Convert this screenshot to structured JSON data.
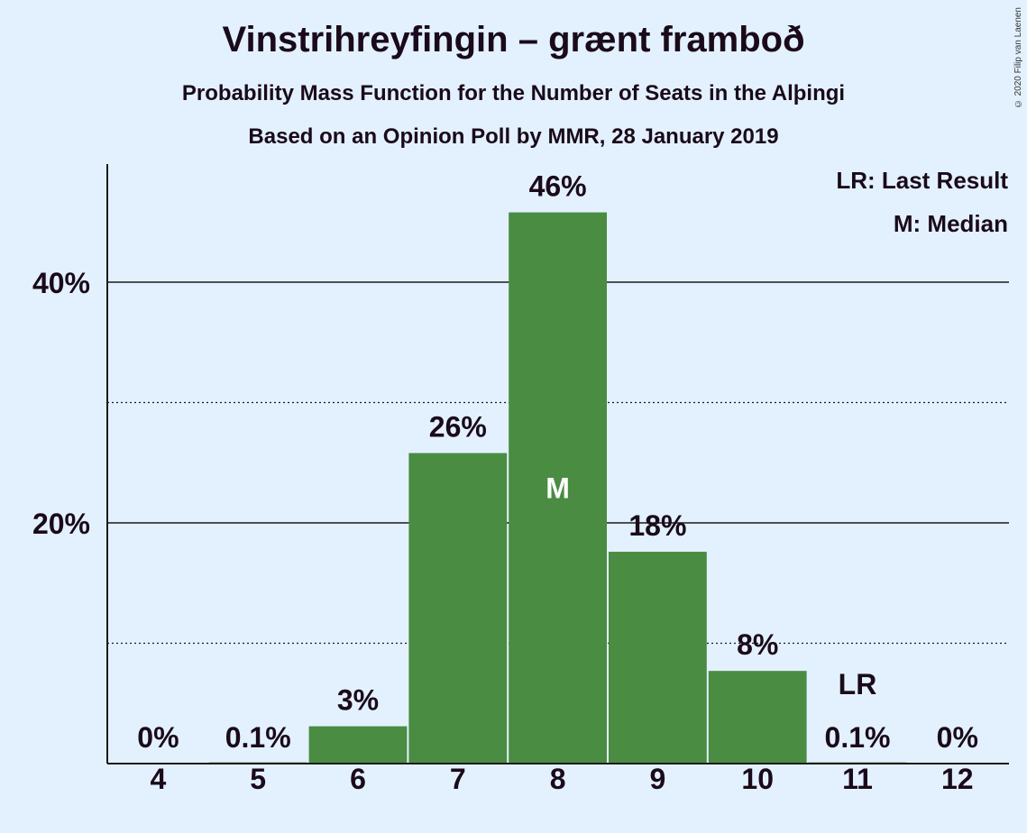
{
  "chart_data": {
    "type": "bar",
    "title": "Vinstrihreyfingin – grænt framboð",
    "subtitle": "Probability Mass Function for the Number of Seats in the Alþingi",
    "source": "Based on an Opinion Poll by MMR, 28 January 2019",
    "copyright": "© 2020 Filip van Laenen",
    "categories": [
      "4",
      "5",
      "6",
      "7",
      "8",
      "9",
      "10",
      "11",
      "12"
    ],
    "values": [
      0,
      0.1,
      3.1,
      25.8,
      45.8,
      17.6,
      7.7,
      0.1,
      0
    ],
    "value_labels": [
      "0%",
      "0.1%",
      "3%",
      "26%",
      "46%",
      "18%",
      "8%",
      "0.1%",
      "0%"
    ],
    "ylim": [
      0,
      50
    ],
    "y_ticks": [
      {
        "value": 20,
        "label": "20%"
      },
      {
        "value": 40,
        "label": "40%"
      }
    ],
    "minor_gridlines": [
      10,
      30
    ],
    "bar_color": "#4a8c42",
    "background_color": "#e3f1ff",
    "median_category": "8",
    "median_marker": "M",
    "last_result_category": "11",
    "last_result_marker": "LR",
    "legend": [
      "LR: Last Result",
      "M: Median"
    ],
    "legend_position": "top-right"
  }
}
